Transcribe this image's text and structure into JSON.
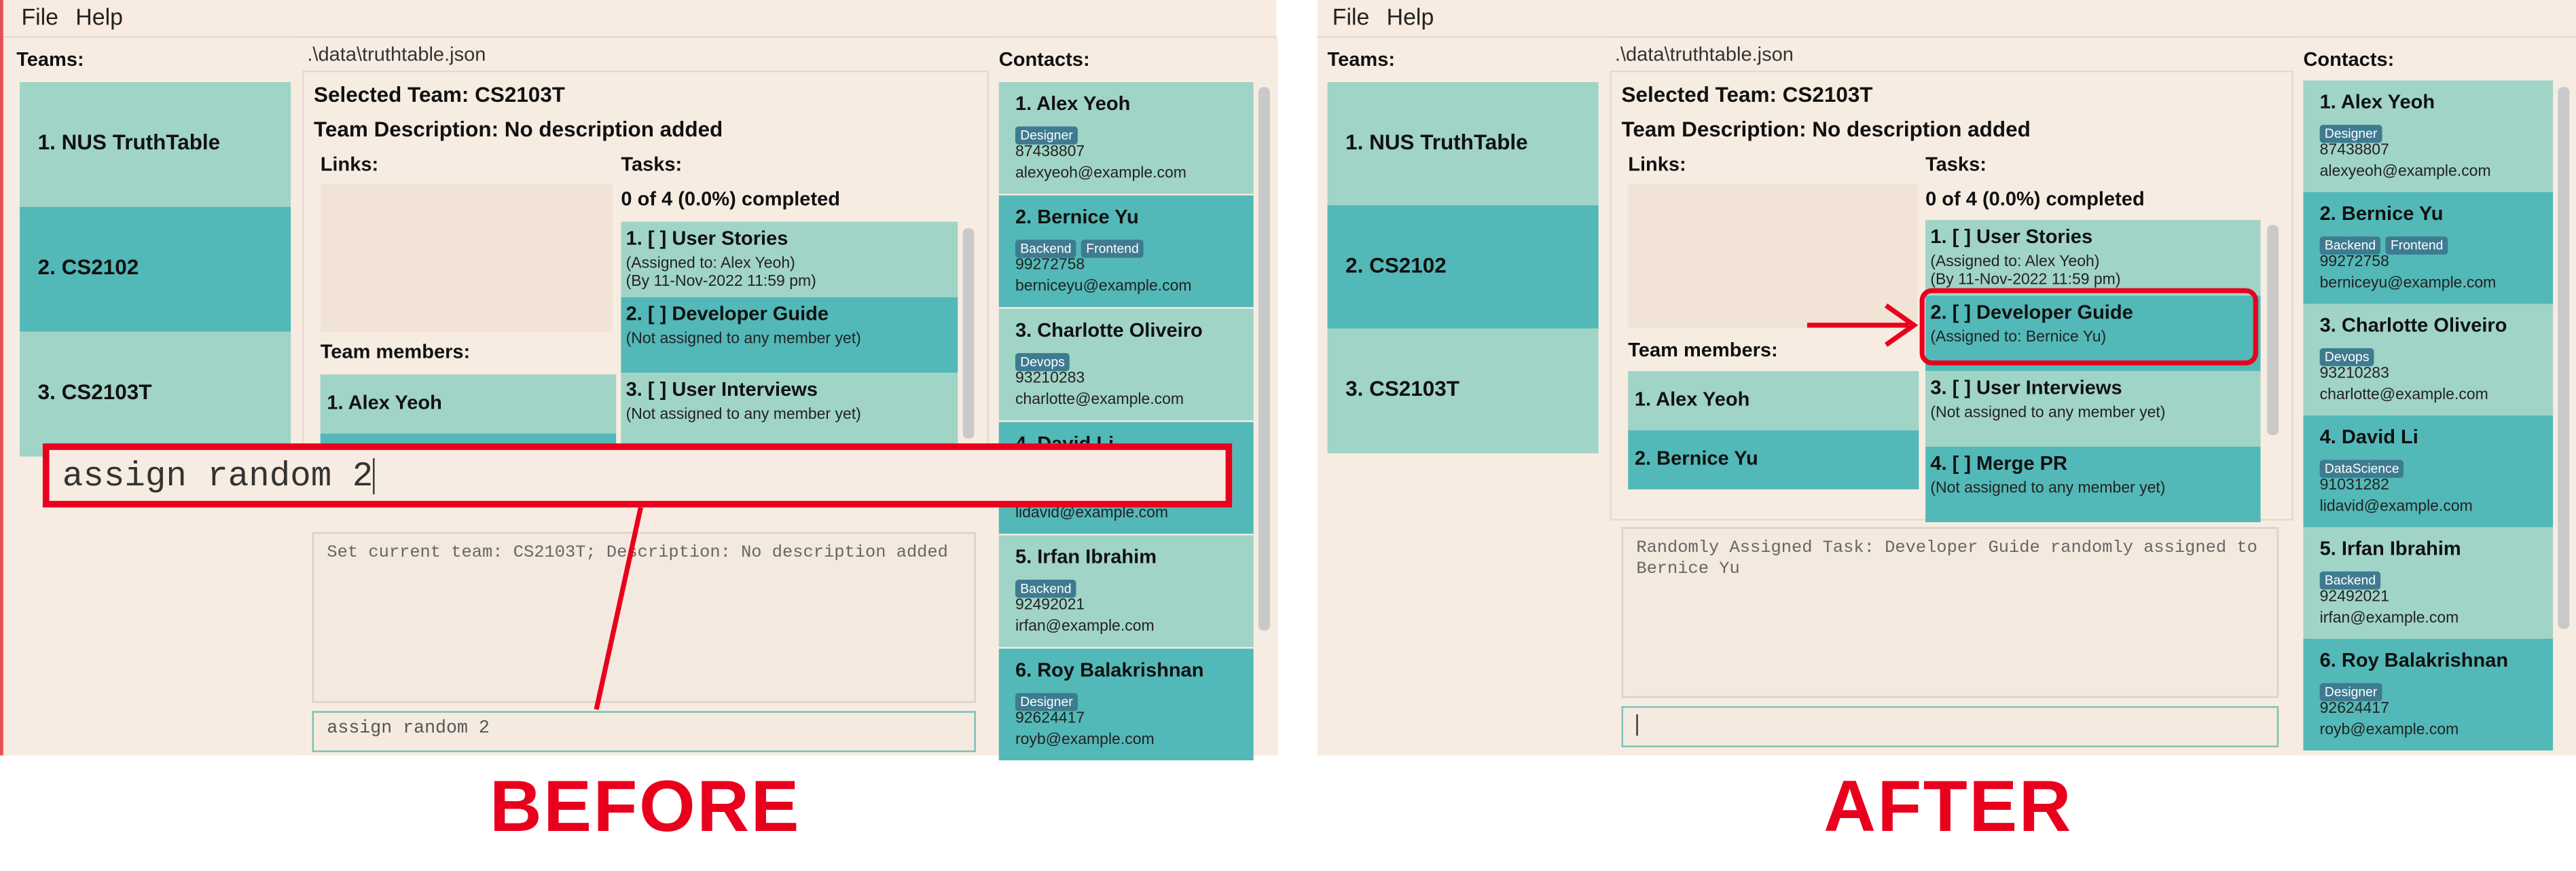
{
  "menu": {
    "file": "File",
    "help": "Help"
  },
  "teams_label": "Teams:",
  "teams": [
    "1. NUS TruthTable",
    "2. CS2102",
    "3. CS2103T"
  ],
  "file_path": ".\\data\\truthtable.json",
  "selected_team": "Selected Team: CS2103T",
  "team_description": "Team Description: No description added",
  "links_label": "Links:",
  "tasks_label": "Tasks:",
  "tasks_progress": "0 of 4 (0.0%) completed",
  "team_members_label": "Team members:",
  "members": [
    "1. Alex Yeoh",
    "2. Bernice Yu"
  ],
  "contacts_label": "Contacts:",
  "contacts": [
    {
      "name": "1. Alex Yeoh",
      "tags": [
        "Designer"
      ],
      "phone": "87438807",
      "email": "alexyeoh@example.com"
    },
    {
      "name": "2. Bernice Yu",
      "tags": [
        "Backend",
        "Frontend"
      ],
      "phone": "99272758",
      "email": "berniceyu@example.com"
    },
    {
      "name": "3. Charlotte Oliveiro",
      "tags": [
        "Devops"
      ],
      "phone": "93210283",
      "email": "charlotte@example.com"
    },
    {
      "name": "4. David Li",
      "tags": [
        "DataScience"
      ],
      "phone": "91031282",
      "email": "lidavid@example.com"
    },
    {
      "name": "5. Irfan Ibrahim",
      "tags": [
        "Backend"
      ],
      "phone": "92492021",
      "email": "irfan@example.com"
    },
    {
      "name": "6. Roy Balakrishnan",
      "tags": [
        "Designer"
      ],
      "phone": "92624417",
      "email": "royb@example.com"
    }
  ],
  "before": {
    "tasks": [
      {
        "title": "1. [ ] User Stories",
        "assigned": "(Assigned to: Alex Yeoh)",
        "deadline": "(By 11-Nov-2022 11:59 pm)"
      },
      {
        "title": "2. [ ] Developer Guide",
        "assigned": "(Not assigned to any member yet)"
      },
      {
        "title": "3. [ ] User Interviews",
        "assigned": "(Not assigned to any member yet)"
      }
    ],
    "result": "Set current team: CS2103T; Description: No description added",
    "command": "assign random 2",
    "big_command": "assign random 2",
    "caption": "BEFORE"
  },
  "after": {
    "tasks": [
      {
        "title": "1. [ ] User Stories",
        "assigned": "(Assigned to: Alex Yeoh)",
        "deadline": "(By 11-Nov-2022 11:59 pm)"
      },
      {
        "title": "2. [ ] Developer Guide",
        "assigned": "(Assigned to: Bernice Yu)"
      },
      {
        "title": "3. [ ] User Interviews",
        "assigned": "(Not assigned to any member yet)"
      },
      {
        "title": "4. [ ] Merge PR",
        "assigned": "(Not assigned to any member yet)"
      }
    ],
    "result": "Randomly Assigned Task: Developer Guide randomly assigned to Bernice Yu",
    "command": "",
    "caption": "AFTER"
  },
  "colors": {
    "annotation_red": "#e8001c",
    "tile_light": "#a0d4c6",
    "tile_dark": "#53b8b8",
    "tag": "#3e7b91"
  }
}
